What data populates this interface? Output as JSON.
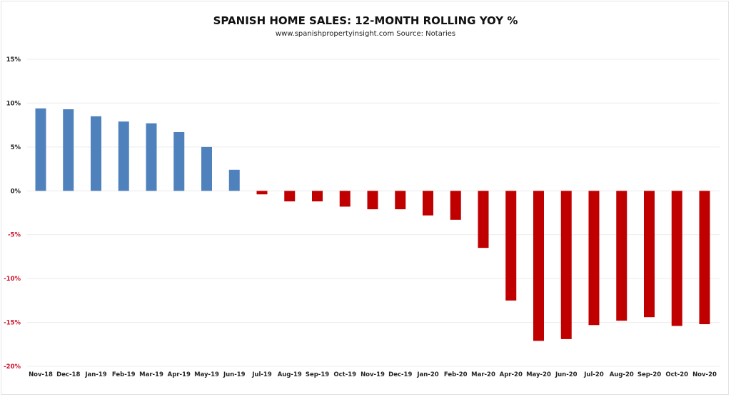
{
  "chart_data": {
    "type": "bar",
    "title": "SPANISH HOME SALES: 12-MONTH ROLLING YOY %",
    "subtitle": "www.spanishpropertyinsight.com Source: Notaries",
    "xlabel": "",
    "ylabel": "",
    "ylim": [
      -20,
      15
    ],
    "yticks": [
      15,
      10,
      5,
      0,
      -5,
      -10,
      -15,
      -20
    ],
    "ytick_labels": [
      "15%",
      "10%",
      "5%",
      "0%",
      "-5%",
      "-10%",
      "-15%",
      "-20%"
    ],
    "grid": true,
    "legend": "none",
    "categories": [
      "Nov-18",
      "Dec-18",
      "Jan-19",
      "Feb-19",
      "Mar-19",
      "Apr-19",
      "May-19",
      "Jun-19",
      "Jul-19",
      "Aug-19",
      "Sep-19",
      "Oct-19",
      "Nov-19",
      "Dec-19",
      "Jan-20",
      "Feb-20",
      "Mar-20",
      "Apr-20",
      "May-20",
      "Jun-20",
      "Jul-20",
      "Aug-20",
      "Sep-20",
      "Oct-20",
      "Nov-20"
    ],
    "values": [
      9.4,
      9.3,
      8.5,
      7.9,
      7.7,
      6.7,
      5.0,
      2.4,
      -0.4,
      -1.2,
      -1.2,
      -1.8,
      -2.1,
      -2.1,
      -2.8,
      -3.3,
      -6.5,
      -12.5,
      -17.1,
      -16.9,
      -15.3,
      -14.8,
      -14.4,
      -15.4,
      -15.2
    ],
    "colors": {
      "positive": "#4F81BD",
      "negative": "#C00000",
      "positive_tick": "#222222",
      "negative_tick": "#D0112B",
      "grid": "#ececec"
    }
  }
}
